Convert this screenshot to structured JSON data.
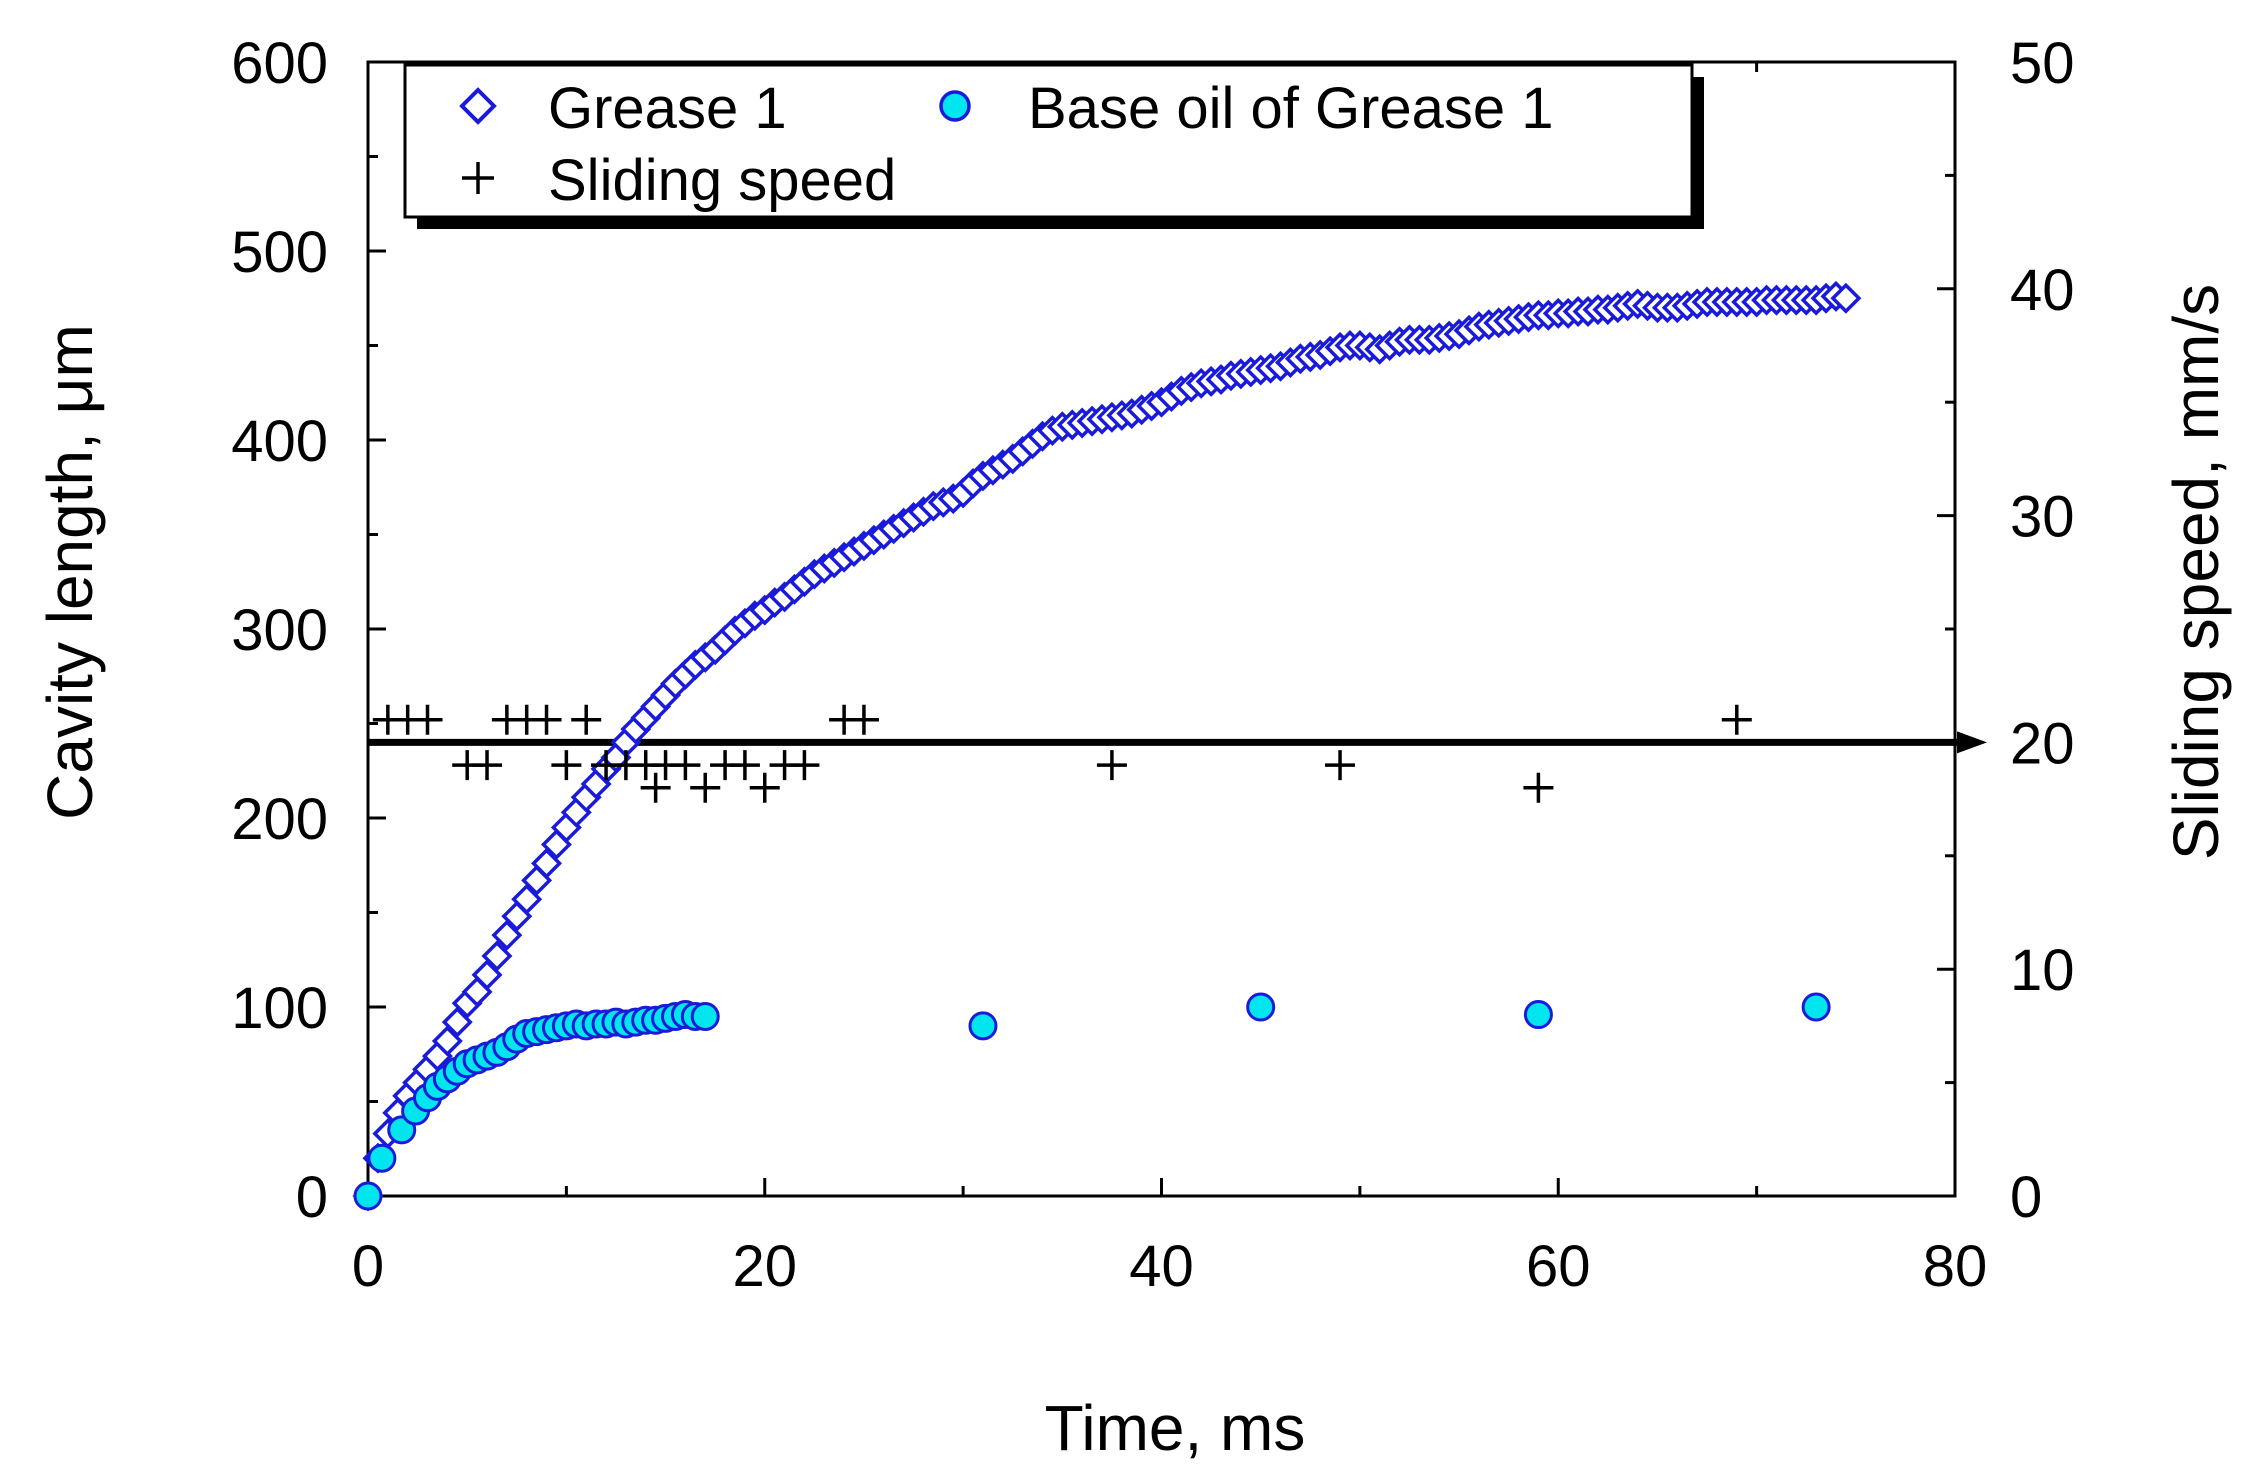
{
  "chart_data": {
    "type": "scatter",
    "x_axis": {
      "label": "Time, ms",
      "range": [
        0,
        80
      ],
      "major_ticks": [
        0,
        20,
        40,
        60,
        80
      ],
      "tick_labels": [
        "0",
        "20",
        "40",
        "60",
        "80"
      ],
      "minor_step": 10
    },
    "y_left_axis": {
      "label": "Cavity length, μm",
      "range": [
        0,
        600
      ],
      "major_ticks": [
        0,
        100,
        200,
        300,
        400,
        500,
        600
      ],
      "tick_labels": [
        "0",
        "100",
        "200",
        "300",
        "400",
        "500",
        "600"
      ],
      "minor_step": 50
    },
    "y_right_axis": {
      "label": "Sliding speed, mm/s",
      "range": [
        0,
        50
      ],
      "major_ticks": [
        0,
        10,
        20,
        30,
        40,
        50
      ],
      "tick_labels": [
        "0",
        "10",
        "20",
        "30",
        "40",
        "50"
      ],
      "minor_step": 5
    },
    "legend": {
      "placement": "top-left",
      "entries": [
        "Grease 1",
        "Base oil of Grease 1",
        "Sliding speed"
      ]
    },
    "reference_line": {
      "axis": "right",
      "y": 20,
      "description": "bold horizontal line with arrow at sliding speed 20 mm/s"
    },
    "grid": false,
    "series": [
      {
        "name": "Grease 1",
        "axis": "left",
        "marker": "diamond",
        "color": "#1a1adb",
        "points": [
          [
            0,
            0
          ],
          [
            0.5,
            20
          ],
          [
            1,
            33
          ],
          [
            1.5,
            44
          ],
          [
            2,
            53
          ],
          [
            2.5,
            60
          ],
          [
            3,
            67
          ],
          [
            3.5,
            74
          ],
          [
            4,
            82
          ],
          [
            4.5,
            92
          ],
          [
            5,
            102
          ],
          [
            5.5,
            108
          ],
          [
            6,
            117
          ],
          [
            6.5,
            127
          ],
          [
            7,
            138
          ],
          [
            7.5,
            148
          ],
          [
            8,
            157
          ],
          [
            8.5,
            167
          ],
          [
            9,
            176
          ],
          [
            9.5,
            186
          ],
          [
            10,
            195
          ],
          [
            10.5,
            203
          ],
          [
            11,
            211
          ],
          [
            11.5,
            218
          ],
          [
            12,
            226
          ],
          [
            12.5,
            232
          ],
          [
            13,
            240
          ],
          [
            13.5,
            247
          ],
          [
            14,
            253
          ],
          [
            14.5,
            259
          ],
          [
            15,
            265
          ],
          [
            15.5,
            271
          ],
          [
            16,
            276
          ],
          [
            16.5,
            281
          ],
          [
            17,
            285
          ],
          [
            17.5,
            289
          ],
          [
            18,
            294
          ],
          [
            18.5,
            299
          ],
          [
            19,
            303
          ],
          [
            19.5,
            307
          ],
          [
            20,
            310
          ],
          [
            20.5,
            314
          ],
          [
            21,
            317
          ],
          [
            21.5,
            321
          ],
          [
            22,
            325
          ],
          [
            22.5,
            329
          ],
          [
            23,
            332
          ],
          [
            23.5,
            335
          ],
          [
            24,
            338
          ],
          [
            24.5,
            341
          ],
          [
            25,
            344
          ],
          [
            25.5,
            347
          ],
          [
            26,
            350
          ],
          [
            26.5,
            353
          ],
          [
            27,
            356
          ],
          [
            27.5,
            359
          ],
          [
            28,
            362
          ],
          [
            28.5,
            365
          ],
          [
            29,
            367
          ],
          [
            29.5,
            369
          ],
          [
            30,
            372
          ],
          [
            30.5,
            377
          ],
          [
            31,
            381
          ],
          [
            31.5,
            384
          ],
          [
            32,
            387
          ],
          [
            32.5,
            390
          ],
          [
            33,
            394
          ],
          [
            33.5,
            398
          ],
          [
            34,
            402
          ],
          [
            34.5,
            405
          ],
          [
            35,
            407
          ],
          [
            35.5,
            408
          ],
          [
            36,
            409
          ],
          [
            36.5,
            410
          ],
          [
            37,
            411
          ],
          [
            37.5,
            412
          ],
          [
            38,
            413
          ],
          [
            38.5,
            414
          ],
          [
            39,
            416
          ],
          [
            39.5,
            418
          ],
          [
            40,
            420
          ],
          [
            40.5,
            423
          ],
          [
            41,
            426
          ],
          [
            41.5,
            428
          ],
          [
            42,
            430
          ],
          [
            42.5,
            431
          ],
          [
            43,
            432
          ],
          [
            43.5,
            434
          ],
          [
            44,
            435
          ],
          [
            44.5,
            436
          ],
          [
            45,
            437
          ],
          [
            45.5,
            438
          ],
          [
            46,
            439
          ],
          [
            46.5,
            441
          ],
          [
            47,
            443
          ],
          [
            47.5,
            444
          ],
          [
            48,
            445
          ],
          [
            48.5,
            447
          ],
          [
            49,
            449
          ],
          [
            49.5,
            450
          ],
          [
            50,
            450
          ],
          [
            50.5,
            449
          ],
          [
            51,
            448
          ],
          [
            51.5,
            450
          ],
          [
            52,
            452
          ],
          [
            52.5,
            453
          ],
          [
            53,
            453
          ],
          [
            53.5,
            453
          ],
          [
            54,
            454
          ],
          [
            54.5,
            455
          ],
          [
            55,
            456
          ],
          [
            55.5,
            458
          ],
          [
            56,
            460
          ],
          [
            56.5,
            461
          ],
          [
            57,
            462
          ],
          [
            57.5,
            463
          ],
          [
            58,
            464
          ],
          [
            58.5,
            465
          ],
          [
            59,
            466
          ],
          [
            59.5,
            466
          ],
          [
            60,
            467
          ],
          [
            60.5,
            467
          ],
          [
            61,
            468
          ],
          [
            61.5,
            468
          ],
          [
            62,
            469
          ],
          [
            62.5,
            469
          ],
          [
            63,
            470
          ],
          [
            63.5,
            471
          ],
          [
            64,
            472
          ],
          [
            64.5,
            471
          ],
          [
            65,
            470
          ],
          [
            65.5,
            470
          ],
          [
            66,
            470
          ],
          [
            66.5,
            471
          ],
          [
            67,
            472
          ],
          [
            67.5,
            473
          ],
          [
            68,
            473
          ],
          [
            68.5,
            473
          ],
          [
            69,
            473
          ],
          [
            69.5,
            473
          ],
          [
            70,
            473
          ],
          [
            70.5,
            474
          ],
          [
            71,
            474
          ],
          [
            71.5,
            474
          ],
          [
            72,
            474
          ],
          [
            72.5,
            474
          ],
          [
            73,
            474
          ],
          [
            73.5,
            475
          ],
          [
            74,
            476
          ],
          [
            74.5,
            475
          ]
        ]
      },
      {
        "name": "Base oil of Grease 1",
        "axis": "left",
        "marker": "circle",
        "color": "#00e5ee",
        "points": [
          [
            0,
            0
          ],
          [
            0.7,
            20
          ],
          [
            1.7,
            35
          ],
          [
            2.4,
            45
          ],
          [
            3,
            52
          ],
          [
            3.5,
            58
          ],
          [
            4,
            62
          ],
          [
            4.5,
            66
          ],
          [
            5,
            70
          ],
          [
            5.5,
            72
          ],
          [
            6,
            74
          ],
          [
            6.5,
            76
          ],
          [
            7,
            79
          ],
          [
            7.5,
            83
          ],
          [
            8,
            86
          ],
          [
            8.5,
            87
          ],
          [
            9,
            88
          ],
          [
            9.5,
            89
          ],
          [
            10,
            90
          ],
          [
            10.5,
            91
          ],
          [
            11,
            90
          ],
          [
            11.5,
            91
          ],
          [
            12,
            91
          ],
          [
            12.5,
            92
          ],
          [
            13,
            91
          ],
          [
            13.5,
            92
          ],
          [
            14,
            93
          ],
          [
            14.5,
            93
          ],
          [
            15,
            94
          ],
          [
            15.5,
            95
          ],
          [
            16,
            96
          ],
          [
            16.5,
            95
          ],
          [
            17,
            95
          ],
          [
            31,
            90
          ],
          [
            45,
            100
          ],
          [
            59,
            96
          ],
          [
            73,
            100
          ]
        ]
      },
      {
        "name": "Sliding speed",
        "axis": "right",
        "marker": "plus",
        "color": "#000000",
        "points": [
          [
            1,
            21
          ],
          [
            2,
            21
          ],
          [
            3,
            21
          ],
          [
            5,
            19
          ],
          [
            6,
            19
          ],
          [
            7,
            21
          ],
          [
            8,
            21
          ],
          [
            9,
            21
          ],
          [
            10,
            19
          ],
          [
            11,
            21
          ],
          [
            12,
            19
          ],
          [
            13,
            19
          ],
          [
            14,
            19
          ],
          [
            14.5,
            18
          ],
          [
            15,
            19
          ],
          [
            16,
            19
          ],
          [
            17,
            18
          ],
          [
            18,
            19
          ],
          [
            19,
            19
          ],
          [
            20,
            18
          ],
          [
            21,
            19
          ],
          [
            22,
            19
          ],
          [
            24,
            21
          ],
          [
            25,
            21
          ],
          [
            37.5,
            19
          ],
          [
            49,
            19
          ],
          [
            59,
            18
          ],
          [
            69,
            21
          ]
        ]
      }
    ]
  }
}
